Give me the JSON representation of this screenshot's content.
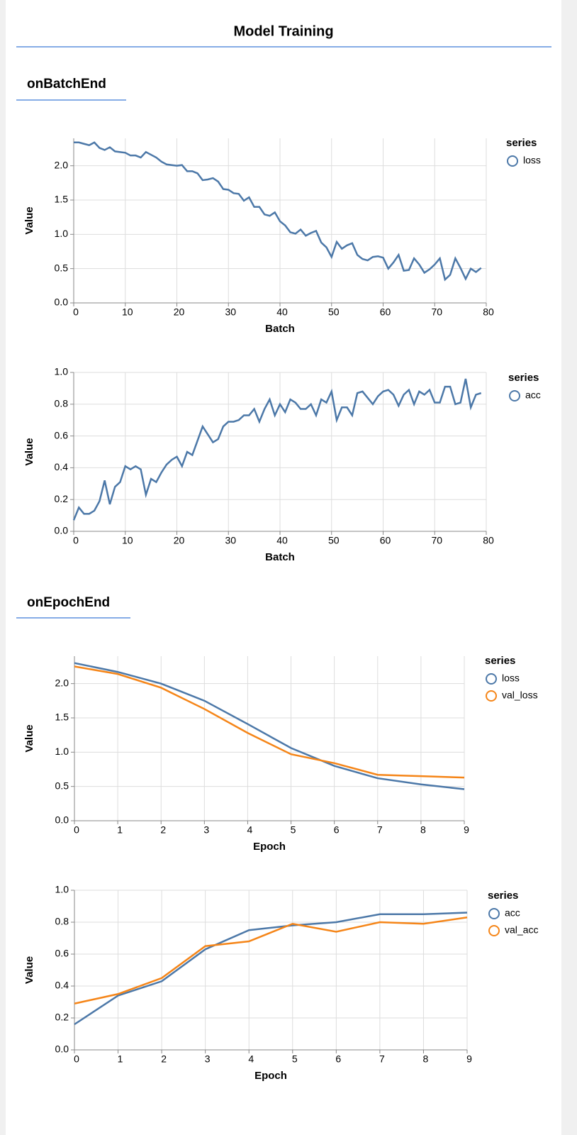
{
  "title": "Model Training",
  "sections": [
    {
      "title": "onBatchEnd"
    },
    {
      "title": "onEpochEnd"
    }
  ],
  "chart_data": [
    {
      "type": "line",
      "x_label": "Batch",
      "y_label": "Value",
      "legend_title": "series",
      "grid": true,
      "x": [
        0,
        1,
        2,
        3,
        4,
        5,
        6,
        7,
        8,
        9,
        10,
        11,
        12,
        13,
        14,
        15,
        16,
        17,
        18,
        19,
        20,
        21,
        22,
        23,
        24,
        25,
        26,
        27,
        28,
        29,
        30,
        31,
        32,
        33,
        34,
        35,
        36,
        37,
        38,
        39,
        40,
        41,
        42,
        43,
        44,
        45,
        46,
        47,
        48,
        49,
        50,
        51,
        52,
        53,
        54,
        55,
        56,
        57,
        58,
        59,
        60,
        61,
        62,
        63,
        64,
        65,
        66,
        67,
        68,
        69,
        70,
        71,
        72,
        73,
        74,
        75,
        76,
        77,
        78,
        79
      ],
      "xlim": [
        0,
        80
      ],
      "xticks": [
        0,
        10,
        20,
        30,
        40,
        50,
        60,
        70,
        80
      ],
      "ylim": [
        0,
        2.4
      ],
      "yticks": [
        {
          "value": 0,
          "label": "0.0"
        },
        0.5,
        {
          "value": 1,
          "label": "1.0"
        },
        1.5,
        {
          "value": 2,
          "label": "2.0"
        }
      ],
      "series": [
        {
          "name": "loss",
          "color": "#4c78a8",
          "values": [
            2.34,
            2.34,
            2.32,
            2.3,
            2.34,
            2.26,
            2.23,
            2.27,
            2.21,
            2.2,
            2.19,
            2.15,
            2.15,
            2.12,
            2.2,
            2.16,
            2.12,
            2.06,
            2.02,
            2.01,
            2.0,
            2.01,
            1.92,
            1.92,
            1.89,
            1.79,
            1.8,
            1.82,
            1.77,
            1.66,
            1.65,
            1.6,
            1.59,
            1.49,
            1.54,
            1.4,
            1.4,
            1.29,
            1.27,
            1.32,
            1.19,
            1.13,
            1.03,
            1.01,
            1.07,
            0.98,
            1.02,
            1.05,
            0.88,
            0.81,
            0.67,
            0.89,
            0.79,
            0.84,
            0.87,
            0.7,
            0.64,
            0.62,
            0.67,
            0.68,
            0.66,
            0.5,
            0.59,
            0.7,
            0.47,
            0.48,
            0.65,
            0.56,
            0.44,
            0.49,
            0.56,
            0.65,
            0.34,
            0.41,
            0.65,
            0.51,
            0.35,
            0.5,
            0.45,
            0.51
          ]
        }
      ]
    },
    {
      "type": "line",
      "x_label": "Batch",
      "y_label": "Value",
      "legend_title": "series",
      "grid": true,
      "x": [
        0,
        1,
        2,
        3,
        4,
        5,
        6,
        7,
        8,
        9,
        10,
        11,
        12,
        13,
        14,
        15,
        16,
        17,
        18,
        19,
        20,
        21,
        22,
        23,
        24,
        25,
        26,
        27,
        28,
        29,
        30,
        31,
        32,
        33,
        34,
        35,
        36,
        37,
        38,
        39,
        40,
        41,
        42,
        43,
        44,
        45,
        46,
        47,
        48,
        49,
        50,
        51,
        52,
        53,
        54,
        55,
        56,
        57,
        58,
        59,
        60,
        61,
        62,
        63,
        64,
        65,
        66,
        67,
        68,
        69,
        70,
        71,
        72,
        73,
        74,
        75,
        76,
        77,
        78,
        79
      ],
      "xlim": [
        0,
        80
      ],
      "xticks": [
        0,
        10,
        20,
        30,
        40,
        50,
        60,
        70,
        80
      ],
      "ylim": [
        0,
        1
      ],
      "yticks": [
        {
          "value": 0,
          "label": "0.0"
        },
        0.2,
        0.4,
        0.6,
        0.8,
        {
          "value": 1,
          "label": "1.0"
        }
      ],
      "series": [
        {
          "name": "acc",
          "color": "#4c78a8",
          "values": [
            0.07,
            0.15,
            0.11,
            0.11,
            0.13,
            0.19,
            0.32,
            0.17,
            0.28,
            0.31,
            0.41,
            0.39,
            0.41,
            0.39,
            0.23,
            0.33,
            0.31,
            0.37,
            0.42,
            0.45,
            0.47,
            0.41,
            0.5,
            0.48,
            0.57,
            0.66,
            0.61,
            0.56,
            0.58,
            0.66,
            0.69,
            0.69,
            0.7,
            0.73,
            0.73,
            0.77,
            0.69,
            0.77,
            0.83,
            0.73,
            0.8,
            0.75,
            0.83,
            0.81,
            0.77,
            0.77,
            0.8,
            0.73,
            0.83,
            0.81,
            0.88,
            0.7,
            0.78,
            0.78,
            0.73,
            0.87,
            0.88,
            0.84,
            0.8,
            0.85,
            0.88,
            0.89,
            0.86,
            0.79,
            0.86,
            0.89,
            0.8,
            0.88,
            0.86,
            0.89,
            0.81,
            0.81,
            0.91,
            0.91,
            0.8,
            0.81,
            0.96,
            0.78,
            0.86,
            0.87
          ]
        }
      ]
    },
    {
      "type": "line",
      "x_label": "Epoch",
      "y_label": "Value",
      "legend_title": "series",
      "grid": true,
      "x": [
        0,
        1,
        2,
        3,
        4,
        5,
        6,
        7,
        8,
        9
      ],
      "xlim": [
        0,
        9
      ],
      "xticks": [
        0,
        1,
        2,
        3,
        4,
        5,
        6,
        7,
        8,
        9
      ],
      "ylim": [
        0,
        2.4
      ],
      "yticks": [
        {
          "value": 0,
          "label": "0.0"
        },
        0.5,
        {
          "value": 1,
          "label": "1.0"
        },
        1.5,
        {
          "value": 2,
          "label": "2.0"
        }
      ],
      "series": [
        {
          "name": "loss",
          "color": "#4c78a8",
          "values": [
            2.3,
            2.17,
            2.0,
            1.75,
            1.41,
            1.06,
            0.8,
            0.62,
            0.53,
            0.46
          ]
        },
        {
          "name": "val_loss",
          "color": "#f58518",
          "values": [
            2.25,
            2.14,
            1.94,
            1.63,
            1.28,
            0.97,
            0.84,
            0.67,
            0.65,
            0.63
          ]
        }
      ]
    },
    {
      "type": "line",
      "x_label": "Epoch",
      "y_label": "Value",
      "legend_title": "series",
      "grid": true,
      "x": [
        0,
        1,
        2,
        3,
        4,
        5,
        6,
        7,
        8,
        9
      ],
      "xlim": [
        0,
        9
      ],
      "xticks": [
        0,
        1,
        2,
        3,
        4,
        5,
        6,
        7,
        8,
        9
      ],
      "ylim": [
        0,
        1
      ],
      "yticks": [
        {
          "value": 0,
          "label": "0.0"
        },
        0.2,
        0.4,
        0.6,
        0.8,
        {
          "value": 1,
          "label": "1.0"
        }
      ],
      "series": [
        {
          "name": "acc",
          "color": "#4c78a8",
          "values": [
            0.16,
            0.34,
            0.43,
            0.63,
            0.75,
            0.78,
            0.8,
            0.85,
            0.85,
            0.86
          ]
        },
        {
          "name": "val_acc",
          "color": "#f58518",
          "values": [
            0.29,
            0.35,
            0.45,
            0.65,
            0.68,
            0.79,
            0.74,
            0.8,
            0.79,
            0.83
          ]
        }
      ]
    }
  ]
}
